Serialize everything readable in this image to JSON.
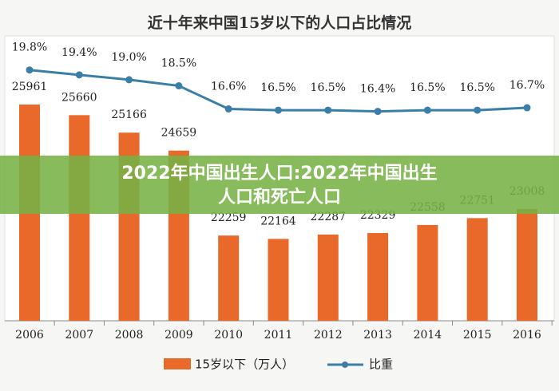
{
  "chart_data": {
    "type": "bar-line",
    "title": "近十年来中国15岁以下的人口占比情况",
    "categories": [
      "2006",
      "2007",
      "2008",
      "2009",
      "2010",
      "2011",
      "2012",
      "2013",
      "2014",
      "2015",
      "2016"
    ],
    "series": [
      {
        "name": "15岁以下（万人）",
        "type": "bar",
        "color": "#e8692a",
        "values": [
          25961,
          25660,
          25166,
          24659,
          22259,
          22164,
          22287,
          22329,
          22558,
          22751,
          23008
        ]
      },
      {
        "name": "比重",
        "type": "line",
        "axis": "y2",
        "color": "#3b7fa8",
        "values": [
          19.8,
          19.4,
          19.0,
          18.5,
          16.6,
          16.5,
          16.5,
          16.4,
          16.5,
          16.5,
          16.7
        ],
        "value_labels": [
          "19.8%",
          "19.4%",
          "19.0%",
          "18.5%",
          "16.6%",
          "16.5%",
          "16.5%",
          "16.4%",
          "16.5%",
          "16.5%",
          "16.7%"
        ]
      }
    ],
    "ylim": [
      19850,
      27900
    ],
    "y2lim": [
      -0.8,
      22.6
    ],
    "banner": [
      "2022年中国出生人口:2022年中国出生",
      "人口和死亡人口"
    ]
  }
}
